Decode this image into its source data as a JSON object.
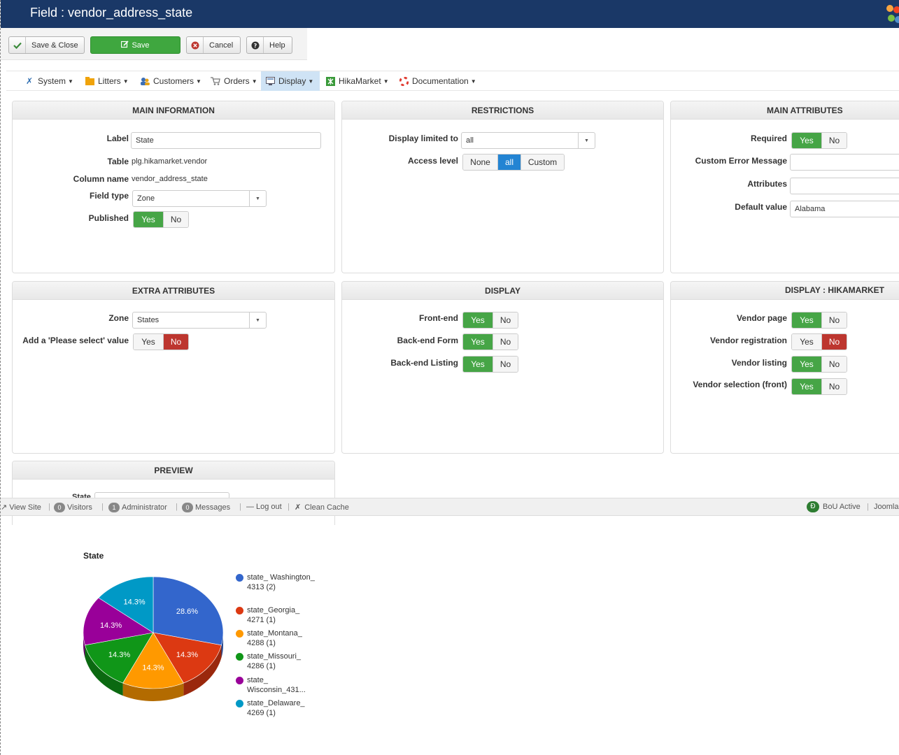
{
  "header": {
    "title": "Field : vendor_address_state",
    "brand_colors": {
      "bar": "#1a3867"
    }
  },
  "toolbar": {
    "save_close": "Save & Close",
    "save": "Save",
    "cancel": "Cancel",
    "help": "Help"
  },
  "menu": {
    "items": [
      {
        "label": "System",
        "icon": "tools-icon"
      },
      {
        "label": "Litters",
        "icon": "folder-icon"
      },
      {
        "label": "Customers",
        "icon": "users-icon"
      },
      {
        "label": "Orders",
        "icon": "cart-icon"
      },
      {
        "label": "Display",
        "icon": "display-icon",
        "active": true
      },
      {
        "label": "HikaMarket",
        "icon": "hikamarket-icon"
      },
      {
        "label": "Documentation",
        "icon": "lifebuoy-icon"
      }
    ]
  },
  "main_info": {
    "title": "MAIN INFORMATION",
    "label_label": "Label",
    "label_value": "State",
    "table_label": "Table",
    "table_value": "plg.hikamarket.vendor",
    "column_label": "Column name",
    "column_value": "vendor_address_state",
    "fieldtype_label": "Field type",
    "fieldtype_value": "Zone",
    "published_label": "Published",
    "yes": "Yes",
    "no": "No"
  },
  "restrictions": {
    "title": "RESTRICTIONS",
    "display_limited_label": "Display limited to",
    "display_limited_value": "all",
    "access_label": "Access level",
    "access_none": "None",
    "access_all": "all",
    "access_custom": "Custom"
  },
  "main_attributes": {
    "title": "MAIN ATTRIBUTES",
    "required_label": "Required",
    "custom_error_label": "Custom Error Message",
    "attributes_label": "Attributes",
    "default_label": "Default value",
    "default_value": "Alabama"
  },
  "extra_attributes": {
    "title": "EXTRA ATTRIBUTES",
    "zone_label": "Zone",
    "zone_value": "States",
    "please_select_label": "Add a 'Please select' value"
  },
  "display": {
    "title": "DISPLAY",
    "frontend_label": "Front-end",
    "backend_form_label": "Back-end Form",
    "backend_listing_label": "Back-end Listing"
  },
  "display_hikamarket": {
    "title": "DISPLAY : HIKAMARKET",
    "vendor_page_label": "Vendor page",
    "vendor_registration_label": "Vendor registration",
    "vendor_listing_label": "Vendor listing",
    "vendor_selection_label": "Vendor selection (front)"
  },
  "preview": {
    "title": "PREVIEW",
    "state_label": "State"
  },
  "statusbar": {
    "view_site": "View Site",
    "visitors_count": "0",
    "visitors": "Visitors",
    "admin_count": "1",
    "administrator": "Administrator",
    "messages_count": "0",
    "messages": "Messages",
    "logout": "Log out",
    "clean_cache": "Clean Cache",
    "bou_active": "BoU Active",
    "joomla": "Joomla"
  },
  "chart_data": {
    "type": "pie",
    "title": "State",
    "categories": [
      "state_ Washington_ 4313 (2)",
      "state_Georgia_ 4271 (1)",
      "state_Montana_ 4288 (1)",
      "state_Missouri_ 4286 (1)",
      "state_ Wisconsin_431...",
      "state_Delaware_ 4269 (1)"
    ],
    "values": [
      2,
      1,
      1,
      1,
      1,
      1
    ],
    "percent_labels": [
      "28.6%",
      "14.3%",
      "14.3%",
      "14.3%",
      "14.3%",
      "14.3%"
    ],
    "colors": [
      "#3366cc",
      "#dc3912",
      "#ff9900",
      "#109618",
      "#990099",
      "#0099c6"
    ],
    "legend_position": "right"
  }
}
